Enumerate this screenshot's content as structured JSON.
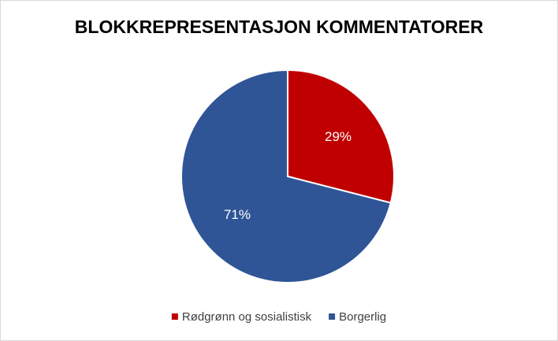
{
  "chart_data": {
    "type": "pie",
    "title": "BLOKKREPRESENTASJON KOMMENTATORER",
    "categories": [
      "Rødgrønn og sosialistisk",
      "Borgerlig"
    ],
    "values": [
      29,
      71
    ],
    "value_labels": [
      "29%",
      "71%"
    ],
    "colors": [
      "#c00000",
      "#2f5597"
    ],
    "legend": "bottom"
  }
}
